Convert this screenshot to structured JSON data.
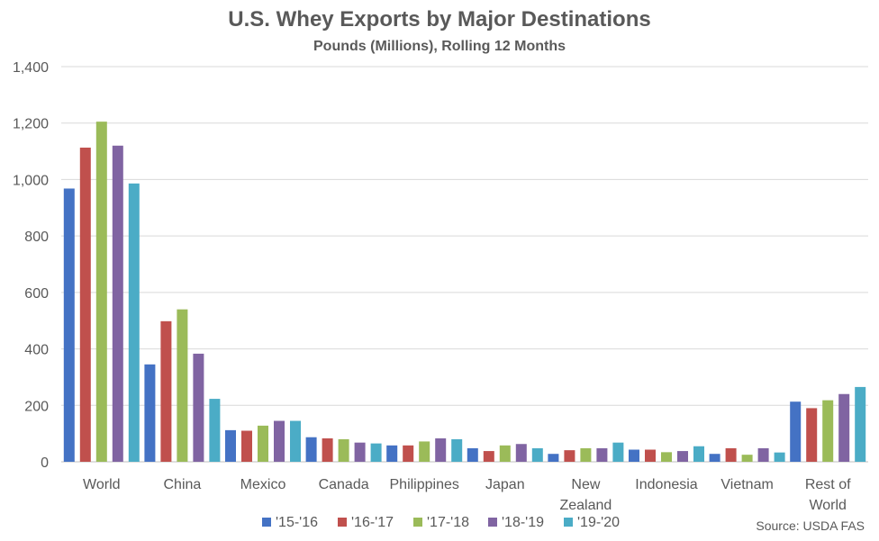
{
  "chart_data": {
    "type": "bar",
    "title": "U.S. Whey Exports by Major Destinations",
    "subtitle": "Pounds (Millions), Rolling 12 Months",
    "categories": [
      [
        "World"
      ],
      [
        "China"
      ],
      [
        "Mexico"
      ],
      [
        "Canada"
      ],
      [
        "Philippines"
      ],
      [
        "Japan"
      ],
      [
        "New",
        "Zealand"
      ],
      [
        "Indonesia"
      ],
      [
        "Vietnam"
      ],
      [
        "Rest of",
        "World"
      ]
    ],
    "series": [
      {
        "name": "'15-'16",
        "color": "#4472C4",
        "values": [
          968,
          345,
          112,
          87,
          58,
          48,
          28,
          43,
          28,
          213
        ]
      },
      {
        "name": "'16-'17",
        "color": "#C0504D",
        "values": [
          1113,
          498,
          110,
          83,
          58,
          38,
          41,
          43,
          48,
          190
        ]
      },
      {
        "name": "'17-'18",
        "color": "#9BBB59",
        "values": [
          1205,
          540,
          128,
          80,
          72,
          58,
          48,
          34,
          25,
          218
        ]
      },
      {
        "name": "'18-'19",
        "color": "#8064A2",
        "values": [
          1120,
          383,
          145,
          68,
          83,
          63,
          48,
          38,
          48,
          240
        ]
      },
      {
        "name": "'19-'20",
        "color": "#4BACC6",
        "values": [
          986,
          223,
          145,
          65,
          80,
          48,
          68,
          55,
          33,
          265
        ]
      }
    ],
    "ylim": [
      0,
      1400
    ],
    "yticks": [
      0,
      200,
      400,
      600,
      800,
      1000,
      1200,
      1400
    ],
    "ytick_labels": [
      "0",
      "200",
      "400",
      "600",
      "800",
      "1,000",
      "1,200",
      "1,400"
    ],
    "grid": true,
    "legend_position": "bottom",
    "source": "Source: USDA FAS"
  }
}
